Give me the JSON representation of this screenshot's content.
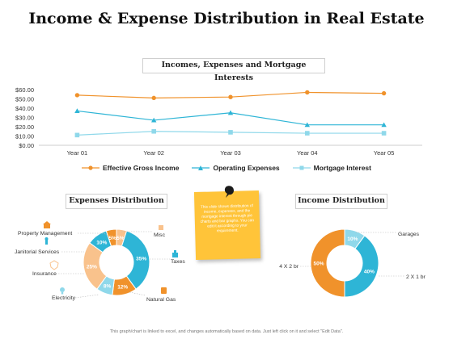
{
  "title": "Income & Expense Distribution in Real Estate",
  "footer": "This graph/chart is linked to excel, and changes automatically based on data. Just left click on it and select \"Edit Data\".",
  "note_text": "This slide shows distribution of income, expenses, and the mortgage interest through pie charts and bar graphs. You can edit it according to your requirement.",
  "colors": {
    "orange": "#f0922b",
    "teal": "#2eb5d6",
    "lightblue": "#8fd8ea",
    "peach": "#f9c28c",
    "note": "#ffc439"
  },
  "chart_data": [
    {
      "type": "line",
      "title": "Incomes, Expenses and Mortgage Interests",
      "categories": [
        "Year 01",
        "Year 02",
        "Year 03",
        "Year 04",
        "Year 05"
      ],
      "y_ticks": [
        "$0.00",
        "$10.00",
        "$20.00",
        "$30.00",
        "$40.00",
        "$50.00",
        "$60.00"
      ],
      "ylim": [
        0,
        60
      ],
      "legend_position": "bottom",
      "series": [
        {
          "name": "Effective Gross Income",
          "values": [
            54,
            51,
            52,
            57,
            56
          ],
          "color": "#f0922b",
          "marker": "circle"
        },
        {
          "name": "Operating Expenses",
          "values": [
            37,
            27,
            35,
            22,
            22
          ],
          "color": "#2eb5d6",
          "marker": "triangle"
        },
        {
          "name": "Mortgage Interest",
          "values": [
            11,
            15,
            14,
            13,
            13
          ],
          "color": "#8fd8ea",
          "marker": "square"
        }
      ]
    },
    {
      "type": "pie",
      "title": "Expenses Distribution",
      "slices": [
        {
          "label": "Misc",
          "value": 5,
          "color": "#f9c28c"
        },
        {
          "label": "Taxes",
          "value": 35,
          "color": "#2eb5d6"
        },
        {
          "label": "Natural Gas",
          "value": 12,
          "color": "#f0922b"
        },
        {
          "label": "Electricity",
          "value": 8,
          "color": "#8fd8ea"
        },
        {
          "label": "Insurance",
          "value": 25,
          "color": "#f9c28c"
        },
        {
          "label": "Janitorial Services",
          "value": 10,
          "color": "#2eb5d6"
        },
        {
          "label": "Property Management",
          "value": 5,
          "color": "#f0922b"
        }
      ],
      "display_labels": [
        "5%",
        "35%",
        "12%",
        "8%",
        "25%",
        "10%",
        "5%"
      ]
    },
    {
      "type": "pie",
      "title": "Income Distribution",
      "slices": [
        {
          "label": "Garages",
          "value": 10,
          "color": "#8fd8ea"
        },
        {
          "label": "2 X 1 br",
          "value": 40,
          "color": "#2eb5d6"
        },
        {
          "label": "4 X 2 br",
          "value": 50,
          "color": "#f0922b"
        }
      ],
      "display_labels": [
        "10%",
        "40%",
        "50%"
      ]
    }
  ]
}
